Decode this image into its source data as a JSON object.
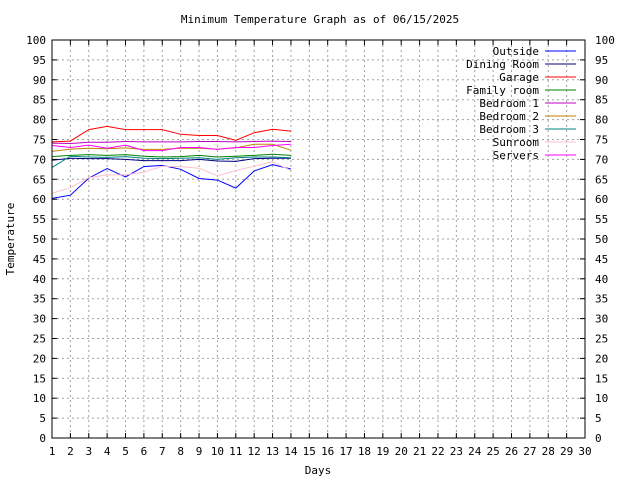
{
  "chart_data": {
    "type": "line",
    "title": "Minimum Temperature Graph as of 06/15/2025",
    "xlabel": "Days",
    "ylabel": "Temperature",
    "xlim": [
      1,
      30
    ],
    "ylim": [
      0,
      100
    ],
    "x_ticks": [
      1,
      2,
      3,
      4,
      5,
      6,
      7,
      8,
      9,
      10,
      11,
      12,
      13,
      14,
      15,
      16,
      17,
      18,
      19,
      20,
      21,
      22,
      23,
      24,
      25,
      26,
      27,
      28,
      29,
      30
    ],
    "y_ticks": [
      0,
      5,
      10,
      15,
      20,
      25,
      30,
      35,
      40,
      45,
      50,
      55,
      60,
      65,
      70,
      75,
      80,
      85,
      90,
      95,
      100
    ],
    "grid": true,
    "legend_position": "top-right",
    "x": [
      1,
      2,
      3,
      4,
      5,
      6,
      7,
      8,
      9,
      10,
      11,
      12,
      13,
      14
    ],
    "series": [
      {
        "name": "Outside",
        "color": "#0000ff",
        "values": [
          60.2,
          61.0,
          65.3,
          67.7,
          65.6,
          68.2,
          68.5,
          67.5,
          65.2,
          64.8,
          62.8,
          67.1,
          68.7,
          67.6
        ]
      },
      {
        "name": "Dining Room",
        "color": "#000080",
        "values": [
          69.8,
          70.3,
          70.2,
          70.2,
          70.0,
          69.7,
          69.7,
          69.7,
          70.0,
          69.6,
          69.5,
          70.2,
          70.3,
          70.3
        ]
      },
      {
        "name": "Garage",
        "color": "#ff0000",
        "values": [
          74.4,
          74.6,
          77.5,
          78.3,
          77.5,
          77.5,
          77.5,
          76.3,
          76.0,
          76.0,
          74.8,
          76.7,
          77.6,
          77.1
        ]
      },
      {
        "name": "Family room",
        "color": "#008000",
        "values": [
          70.7,
          71.0,
          71.2,
          71.0,
          71.2,
          70.8,
          70.6,
          70.7,
          71.0,
          70.6,
          70.8,
          71.0,
          71.3,
          71.0
        ]
      },
      {
        "name": "Bedroom 1",
        "color": "#c000c0",
        "values": [
          74.1,
          74.0,
          74.3,
          74.3,
          74.5,
          74.4,
          74.4,
          74.4,
          74.5,
          74.5,
          74.4,
          74.5,
          74.6,
          74.5
        ]
      },
      {
        "name": "Bedroom 2",
        "color": "#c08000",
        "values": [
          72.0,
          72.6,
          72.8,
          72.7,
          72.9,
          72.5,
          72.5,
          72.8,
          72.8,
          72.6,
          72.9,
          73.8,
          73.8,
          72.3
        ]
      },
      {
        "name": "Bedroom 3",
        "color": "#008080",
        "values": [
          68.0,
          70.8,
          70.6,
          70.5,
          70.7,
          70.3,
          70.2,
          70.3,
          70.4,
          70.0,
          70.4,
          70.6,
          70.6,
          70.4
        ]
      },
      {
        "name": "Sunroom",
        "color": "#ffc0cb",
        "values": [
          61.5,
          62.9,
          65.4,
          66.1,
          66.1,
          66.8,
          68.3,
          68.2,
          67.8,
          65.9,
          67.2,
          68.3,
          69.4,
          67.2
        ]
      },
      {
        "name": "Servers",
        "color": "#ff00ff",
        "values": [
          73.5,
          73.0,
          73.6,
          72.8,
          73.6,
          72.2,
          72.2,
          73.0,
          73.0,
          72.5,
          73.0,
          73.0,
          73.5,
          73.8
        ]
      }
    ]
  }
}
